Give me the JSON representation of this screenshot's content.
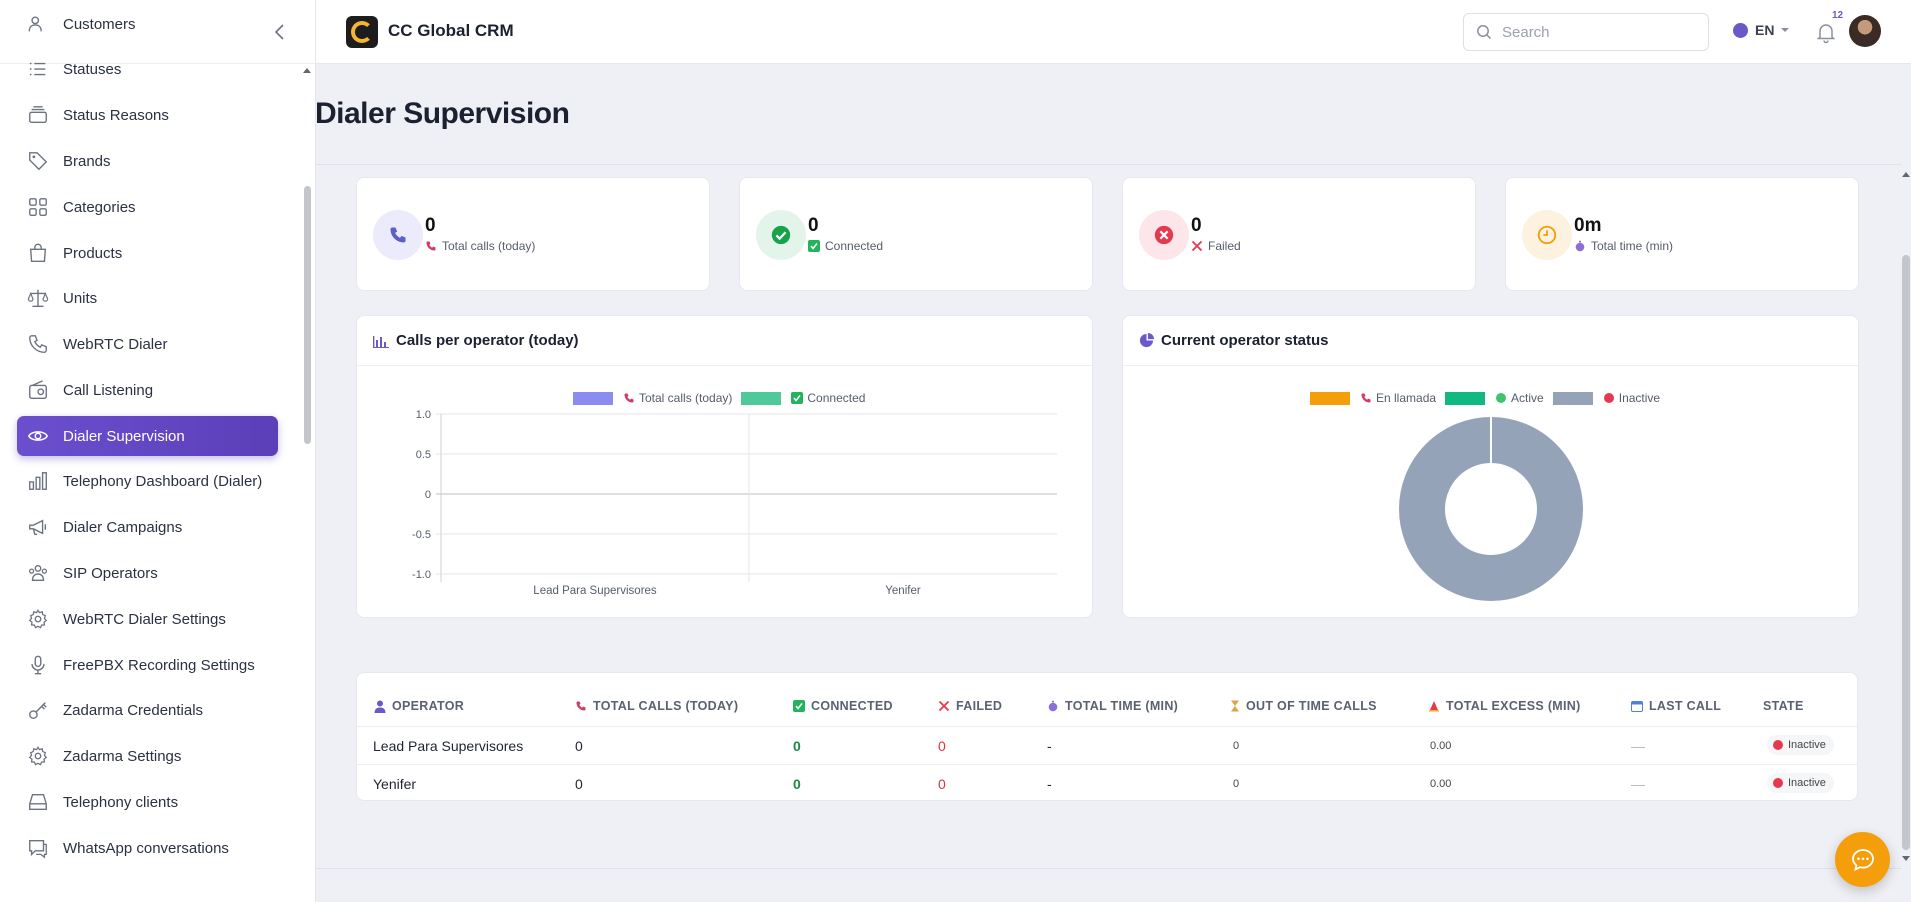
{
  "app": {
    "title": "CC Global CRM"
  },
  "header": {
    "search_placeholder": "Search",
    "language": "EN",
    "notification_count": "12"
  },
  "sidebar": {
    "items": [
      {
        "label": "Customers",
        "icon": "users-icon"
      },
      {
        "label": "Statuses",
        "icon": "list-icon"
      },
      {
        "label": "Status Reasons",
        "icon": "layers-icon"
      },
      {
        "label": "Brands",
        "icon": "tag-icon"
      },
      {
        "label": "Categories",
        "icon": "grid-icon"
      },
      {
        "label": "Products",
        "icon": "shopping-bag-icon"
      },
      {
        "label": "Units",
        "icon": "scale-icon"
      },
      {
        "label": "WebRTC Dialer",
        "icon": "phone-icon"
      },
      {
        "label": "Call Listening",
        "icon": "radio-icon"
      },
      {
        "label": "Dialer Supervision",
        "icon": "eye-icon",
        "active": true
      },
      {
        "label": "Telephony Dashboard (Dialer)",
        "icon": "bar-chart-icon"
      },
      {
        "label": "Dialer Campaigns",
        "icon": "megaphone-icon"
      },
      {
        "label": "SIP Operators",
        "icon": "team-icon"
      },
      {
        "label": "WebRTC Dialer Settings",
        "icon": "gear-icon"
      },
      {
        "label": "FreePBX Recording Settings",
        "icon": "microphone-icon"
      },
      {
        "label": "Zadarma Credentials",
        "icon": "key-icon"
      },
      {
        "label": "Zadarma Settings",
        "icon": "gear-icon"
      },
      {
        "label": "Telephony clients",
        "icon": "drive-icon"
      },
      {
        "label": "WhatsApp conversations",
        "icon": "chat-icon"
      }
    ]
  },
  "page": {
    "title": "Dialer Supervision"
  },
  "stats": [
    {
      "value": "0",
      "label": "Total calls (today)",
      "color": "#5b5fc7",
      "bg": "#ecebfb"
    },
    {
      "value": "0",
      "label": "Connected",
      "color": "#16a34a",
      "bg": "#e3f5ea"
    },
    {
      "value": "0",
      "label": "Failed",
      "color": "#e53950",
      "bg": "#fde6e9"
    },
    {
      "value": "0m",
      "label": "Total time (min)",
      "color": "#f59e0b",
      "bg": "#fdf2e0"
    }
  ],
  "bar_panel": {
    "title": "Calls per operator (today)"
  },
  "pie_panel": {
    "title": "Current operator status"
  },
  "chart_data": [
    {
      "type": "bar",
      "categories": [
        "Lead Para Supervisores",
        "Yenifer"
      ],
      "series": [
        {
          "name": "Total calls (today)",
          "values": [
            0,
            0
          ],
          "color": "#8b8cf0"
        },
        {
          "name": "Connected",
          "values": [
            0,
            0
          ],
          "color": "#4fc99a"
        }
      ],
      "ylim": [
        -1.0,
        1.0
      ],
      "yticks": [
        "1.0",
        "0.5",
        "0",
        "-0.5",
        "-1.0"
      ],
      "legend": "top",
      "grid": true
    },
    {
      "type": "pie",
      "labels": [
        "En llamada",
        "Active",
        "Inactive"
      ],
      "values": [
        0,
        0,
        2
      ],
      "colors": [
        "#f59e0b",
        "#10b981",
        "#94a3b8"
      ],
      "legend": "top"
    }
  ],
  "table": {
    "headers": [
      "OPERATOR",
      "TOTAL CALLS (TODAY)",
      "CONNECTED",
      "FAILED",
      "TOTAL TIME (MIN)",
      "OUT OF TIME CALLS",
      "TOTAL EXCESS (MIN)",
      "LAST CALL",
      "STATE"
    ],
    "rows": [
      {
        "operator": "Lead Para Supervisores",
        "total": "0",
        "connected": "0",
        "failed": "0",
        "time": "-",
        "out": "0",
        "excess": "0.00",
        "last": "—",
        "state": "Inactive"
      },
      {
        "operator": "Yenifer",
        "total": "0",
        "connected": "0",
        "failed": "0",
        "time": "-",
        "out": "0",
        "excess": "0.00",
        "last": "—",
        "state": "Inactive"
      }
    ]
  }
}
